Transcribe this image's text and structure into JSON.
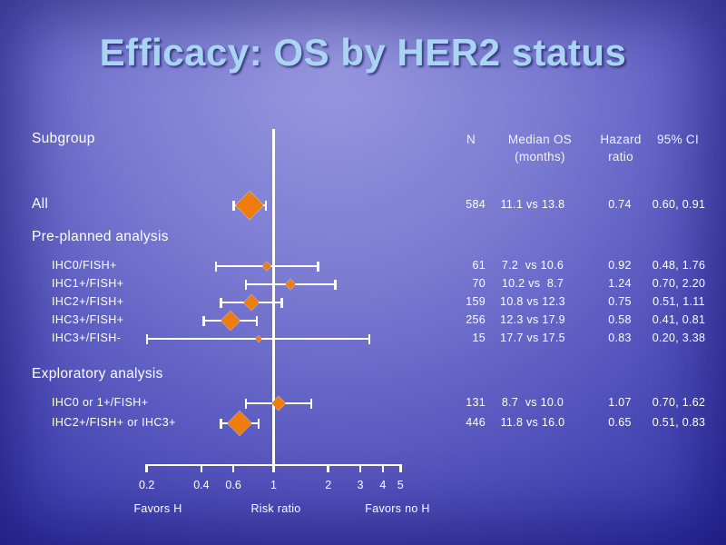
{
  "slide": {
    "title": "Efficacy: OS by HER2 status"
  },
  "colors": {
    "title_text": "#a9d4f2",
    "body_text": "#ffffff",
    "marker_orange": "#ee7d0e",
    "plot_lines": "#ffffff",
    "background_light": "#9898e0",
    "background_dark": "#2323a0"
  },
  "table": {
    "subgroup_header": "Subgroup",
    "columns": [
      {
        "label": "N"
      },
      {
        "label": "Median OS\n(months)"
      },
      {
        "label": "Hazard\nratio"
      },
      {
        "label": "95% CI"
      }
    ]
  },
  "chart_data": {
    "type": "forest",
    "scale": "log10",
    "ref_line": 1,
    "axis": {
      "ticks": [
        0.2,
        0.4,
        0.6,
        1,
        2,
        3,
        4,
        5
      ],
      "tick_labels": [
        "0.2",
        "0.4",
        "0.6",
        "1",
        "2",
        "3",
        "4",
        "5"
      ],
      "label": "Risk ratio",
      "left_label": "Favors H",
      "right_label": "Favors no H"
    },
    "rows": [
      {
        "type": "item",
        "label": "All",
        "emphasis": true,
        "n": 584,
        "median_os": "11.1 vs 13.8",
        "hazard_ratio": 0.74,
        "ci_low": 0.6,
        "ci_high": 0.91,
        "ci_text": "0.60, 0.91"
      },
      {
        "type": "section",
        "label": "Pre-planned analysis"
      },
      {
        "type": "item",
        "label": "IHC0/FISH+",
        "emphasis": false,
        "n": 61,
        "median_os": "7.2  vs 10.6",
        "hazard_ratio": 0.92,
        "ci_low": 0.48,
        "ci_high": 1.76,
        "ci_text": "0.48, 1.76"
      },
      {
        "type": "item",
        "label": "IHC1+/FISH+",
        "emphasis": false,
        "n": 70,
        "median_os": "10.2 vs  8.7",
        "hazard_ratio": 1.24,
        "ci_low": 0.7,
        "ci_high": 2.2,
        "ci_text": "0.70, 2.20"
      },
      {
        "type": "item",
        "label": "IHC2+/FISH+",
        "emphasis": false,
        "n": 159,
        "median_os": "10.8 vs 12.3",
        "hazard_ratio": 0.75,
        "ci_low": 0.51,
        "ci_high": 1.11,
        "ci_text": "0.51, 1.11"
      },
      {
        "type": "item",
        "label": "IHC3+/FISH+",
        "emphasis": false,
        "n": 256,
        "median_os": "12.3 vs 17.9",
        "hazard_ratio": 0.58,
        "ci_low": 0.41,
        "ci_high": 0.81,
        "ci_text": "0.41, 0.81"
      },
      {
        "type": "item",
        "label": "IHC3+/FISH-",
        "emphasis": false,
        "n": 15,
        "median_os": "17.7 vs 17.5",
        "hazard_ratio": 0.83,
        "ci_low": 0.2,
        "ci_high": 3.38,
        "ci_text": "0.20, 3.38"
      },
      {
        "type": "section",
        "label": "Exploratory analysis"
      },
      {
        "type": "item",
        "label": "IHC0 or 1+/FISH+",
        "emphasis": false,
        "n": 131,
        "median_os": "8.7  vs 10.0",
        "hazard_ratio": 1.07,
        "ci_low": 0.7,
        "ci_high": 1.62,
        "ci_text": "0.70, 1.62"
      },
      {
        "type": "item",
        "label": "IHC2+/FISH+ or IHC3+",
        "emphasis": false,
        "n": 446,
        "median_os": "11.8 vs 16.0",
        "hazard_ratio": 0.65,
        "ci_low": 0.51,
        "ci_high": 0.83,
        "ci_text": "0.51, 0.83"
      }
    ]
  }
}
